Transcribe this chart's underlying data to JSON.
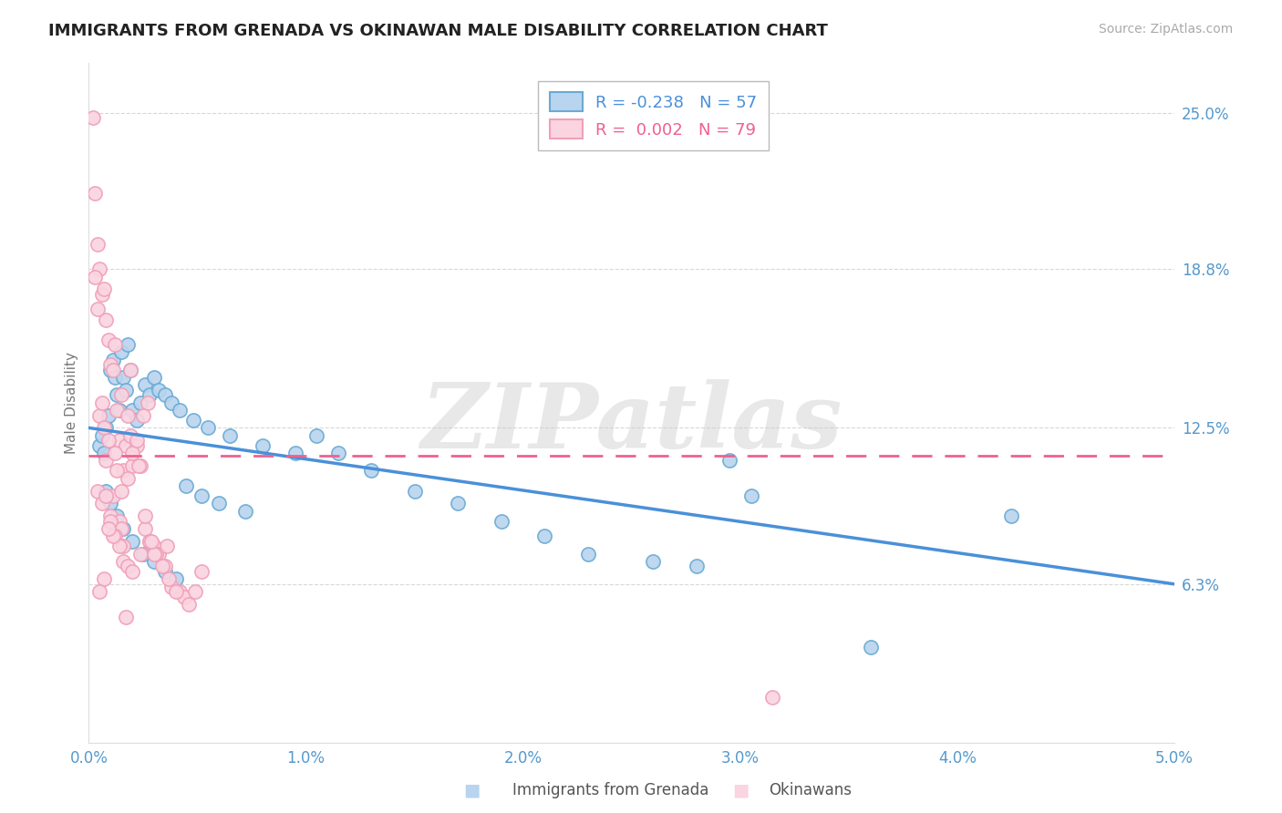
{
  "title": "IMMIGRANTS FROM GRENADA VS OKINAWAN MALE DISABILITY CORRELATION CHART",
  "source": "Source: ZipAtlas.com",
  "xlabel_ticks": [
    0.0,
    1.0,
    2.0,
    3.0,
    4.0,
    5.0
  ],
  "ylabel_ticks": [
    0.063,
    0.125,
    0.188,
    0.25
  ],
  "ylabel_labels": [
    "6.3%",
    "12.5%",
    "18.8%",
    "25.0%"
  ],
  "ylabel": "Male Disability",
  "xlim": [
    0.0,
    5.0
  ],
  "ylim": [
    0.0,
    0.27
  ],
  "legend_1_label": "R = -0.238   N = 57",
  "legend_2_label": "R =  0.002   N = 79",
  "blue_face_color": "#b8d4ee",
  "blue_edge_color": "#6aaad4",
  "pink_face_color": "#fad4e0",
  "pink_edge_color": "#f0a0b8",
  "blue_line_color": "#4a90d9",
  "pink_line_color": "#f06090",
  "watermark": "ZIPatlas",
  "background_color": "#ffffff",
  "grid_color": "#d8d8d8",
  "blue_x": [
    0.05,
    0.06,
    0.07,
    0.08,
    0.09,
    0.1,
    0.11,
    0.12,
    0.13,
    0.14,
    0.15,
    0.16,
    0.17,
    0.18,
    0.19,
    0.2,
    0.22,
    0.24,
    0.26,
    0.28,
    0.3,
    0.32,
    0.35,
    0.38,
    0.42,
    0.48,
    0.55,
    0.65,
    0.8,
    0.95,
    1.05,
    1.15,
    1.3,
    1.5,
    1.7,
    1.9,
    2.1,
    2.3,
    2.6,
    2.8,
    0.08,
    0.1,
    0.13,
    0.16,
    0.2,
    0.25,
    0.3,
    0.35,
    0.4,
    3.05,
    3.6,
    4.25,
    0.45,
    0.52,
    0.6,
    0.72,
    2.95
  ],
  "blue_y": [
    0.118,
    0.122,
    0.115,
    0.125,
    0.13,
    0.148,
    0.152,
    0.145,
    0.138,
    0.132,
    0.155,
    0.145,
    0.14,
    0.158,
    0.148,
    0.132,
    0.128,
    0.135,
    0.142,
    0.138,
    0.145,
    0.14,
    0.138,
    0.135,
    0.132,
    0.128,
    0.125,
    0.122,
    0.118,
    0.115,
    0.122,
    0.115,
    0.108,
    0.1,
    0.095,
    0.088,
    0.082,
    0.075,
    0.072,
    0.07,
    0.1,
    0.095,
    0.09,
    0.085,
    0.08,
    0.075,
    0.072,
    0.068,
    0.065,
    0.098,
    0.038,
    0.09,
    0.102,
    0.098,
    0.095,
    0.092,
    0.112
  ],
  "pink_x": [
    0.02,
    0.03,
    0.04,
    0.05,
    0.06,
    0.07,
    0.08,
    0.09,
    0.1,
    0.11,
    0.12,
    0.13,
    0.14,
    0.15,
    0.16,
    0.17,
    0.18,
    0.19,
    0.2,
    0.22,
    0.03,
    0.04,
    0.05,
    0.06,
    0.07,
    0.08,
    0.09,
    0.1,
    0.11,
    0.12,
    0.14,
    0.15,
    0.16,
    0.18,
    0.2,
    0.22,
    0.24,
    0.26,
    0.28,
    0.3,
    0.04,
    0.06,
    0.08,
    0.1,
    0.12,
    0.14,
    0.16,
    0.18,
    0.2,
    0.24,
    0.28,
    0.32,
    0.36,
    0.26,
    0.11,
    0.09,
    0.07,
    0.05,
    0.31,
    0.23,
    0.15,
    0.13,
    0.27,
    0.19,
    0.25,
    3.15,
    0.42,
    0.52,
    0.35,
    0.38,
    0.44,
    0.4,
    0.3,
    0.17,
    0.34,
    0.46,
    0.29,
    0.37,
    0.49
  ],
  "pink_y": [
    0.248,
    0.218,
    0.198,
    0.188,
    0.178,
    0.18,
    0.168,
    0.16,
    0.15,
    0.148,
    0.158,
    0.132,
    0.12,
    0.138,
    0.108,
    0.118,
    0.13,
    0.122,
    0.11,
    0.118,
    0.185,
    0.172,
    0.13,
    0.135,
    0.125,
    0.112,
    0.12,
    0.09,
    0.098,
    0.115,
    0.088,
    0.085,
    0.078,
    0.105,
    0.115,
    0.12,
    0.11,
    0.085,
    0.08,
    0.078,
    0.1,
    0.095,
    0.098,
    0.088,
    0.082,
    0.078,
    0.072,
    0.07,
    0.068,
    0.075,
    0.08,
    0.075,
    0.078,
    0.09,
    0.082,
    0.085,
    0.065,
    0.06,
    0.075,
    0.11,
    0.1,
    0.108,
    0.135,
    0.148,
    0.13,
    0.018,
    0.06,
    0.068,
    0.07,
    0.062,
    0.058,
    0.06,
    0.075,
    0.05,
    0.07,
    0.055,
    0.08,
    0.065,
    0.06
  ]
}
